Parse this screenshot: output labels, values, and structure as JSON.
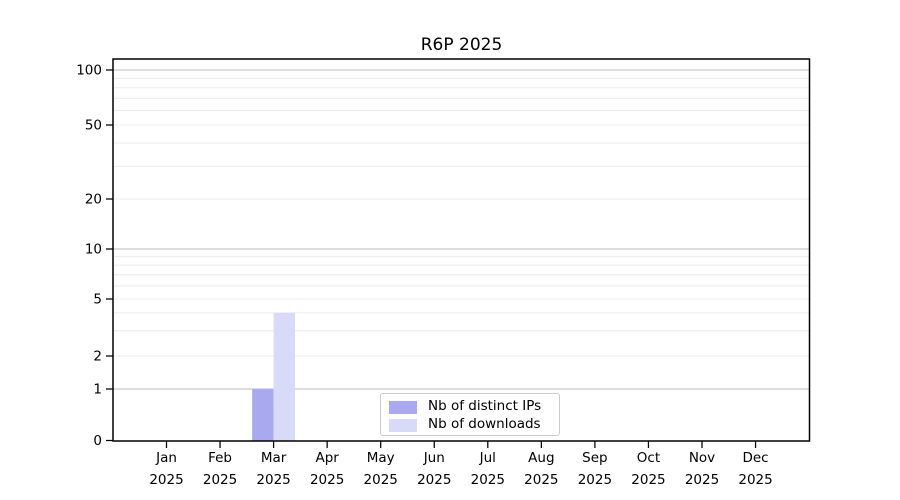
{
  "chart_data": {
    "type": "bar",
    "title": "R6P 2025",
    "x_axis": {
      "categories": [
        "Jan",
        "Feb",
        "Mar",
        "Apr",
        "May",
        "Jun",
        "Jul",
        "Aug",
        "Sep",
        "Oct",
        "Nov",
        "Dec"
      ],
      "year": "2025"
    },
    "y_axis": {
      "scale": "symlog",
      "ticks": [
        0,
        1,
        2,
        5,
        10,
        20,
        50,
        100
      ],
      "decade_gridlines": [
        1,
        10,
        100
      ],
      "minor_gridlines": [
        3,
        4,
        6,
        7,
        8,
        9,
        30,
        40,
        60,
        70,
        80,
        90
      ],
      "range": [
        0,
        110
      ]
    },
    "series": [
      {
        "name": "Nb of distinct IPs",
        "color": "#a9a9f0",
        "values": [
          0,
          0,
          1,
          0,
          0,
          0,
          0,
          0,
          0,
          0,
          0,
          0
        ]
      },
      {
        "name": "Nb of downloads",
        "color": "#d9d9f8",
        "values": [
          0,
          0,
          4,
          0,
          0,
          0,
          0,
          0,
          0,
          0,
          0,
          0
        ]
      }
    ],
    "grid": "horizontal",
    "legend_position": "bottom-center-inside"
  },
  "legend": {
    "items": [
      {
        "label": "Nb of distinct IPs",
        "swatch_color": "#a9a9f0"
      },
      {
        "label": "Nb of downloads",
        "swatch_color": "#d9d9f8"
      }
    ]
  },
  "colors": {
    "background": "#ffffff",
    "axis": "#000000",
    "grid_decade": "#c9c9c9",
    "grid_minor": "#ececec",
    "legend_border": "#cccccc",
    "text": "#000000"
  }
}
